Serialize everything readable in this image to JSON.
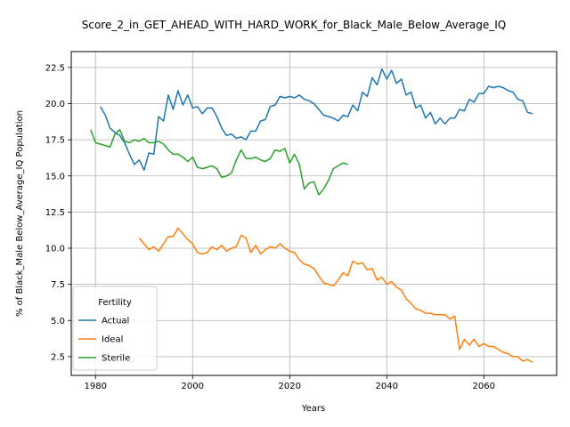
{
  "chart_data": {
    "type": "line",
    "title": "Score_2_in_GET_AHEAD_WITH_HARD_WORK_for_Black_Male_Below_Average_IQ",
    "xlabel": "Years",
    "ylabel": "% of Black_Male Below_Average_IQ Population",
    "xlim": [
      1975,
      2075
    ],
    "ylim": [
      1.2,
      23.6
    ],
    "xticks": [
      1980,
      2000,
      2020,
      2040,
      2060
    ],
    "yticks": [
      2.5,
      5.0,
      7.5,
      10.0,
      12.5,
      15.0,
      17.5,
      20.0,
      22.5
    ],
    "xtick_labels": [
      "1980",
      "2000",
      "2020",
      "2040",
      "2060"
    ],
    "ytick_labels": [
      "2.5",
      "5.0",
      "7.5",
      "10.0",
      "12.5",
      "15.0",
      "17.5",
      "20.0",
      "22.5"
    ],
    "grid": true,
    "legend": {
      "title": "Fertility",
      "placement": "lower-left"
    },
    "series": [
      {
        "name": "Actual",
        "color": "#1f77b4",
        "x": [
          1981,
          1982,
          1983,
          1984,
          1985,
          1986,
          1987,
          1988,
          1989,
          1990,
          1991,
          1992,
          1993,
          1994,
          1995,
          1996,
          1997,
          1998,
          1999,
          2000,
          2001,
          2002,
          2003,
          2004,
          2005,
          2006,
          2007,
          2008,
          2009,
          2010,
          2011,
          2012,
          2013,
          2014,
          2015,
          2016,
          2017,
          2018,
          2019,
          2020,
          2021,
          2022,
          2023,
          2024,
          2025,
          2026,
          2027,
          2028,
          2029,
          2030,
          2031,
          2032,
          2033,
          2034,
          2035,
          2036,
          2037,
          2038,
          2039,
          2040,
          2041,
          2042,
          2043,
          2044,
          2045,
          2046,
          2047,
          2048,
          2049,
          2050,
          2051,
          2052,
          2053,
          2054,
          2055,
          2056,
          2057,
          2058,
          2059,
          2060,
          2061,
          2062,
          2063,
          2064,
          2065,
          2066,
          2067,
          2068,
          2069,
          2070
        ],
        "values": [
          19.8,
          19.2,
          18.3,
          18.0,
          17.8,
          17.3,
          16.5,
          15.8,
          16.1,
          15.4,
          16.6,
          16.5,
          19.1,
          18.8,
          20.6,
          19.6,
          20.9,
          19.9,
          20.6,
          19.7,
          19.8,
          19.3,
          19.7,
          19.7,
          19.1,
          18.3,
          17.8,
          17.9,
          17.6,
          17.7,
          17.5,
          18.1,
          18.1,
          18.8,
          18.9,
          19.8,
          19.9,
          20.5,
          20.4,
          20.5,
          20.4,
          20.6,
          20.3,
          20.2,
          20.0,
          19.6,
          19.2,
          19.1,
          19.0,
          18.8,
          19.2,
          19.1,
          19.9,
          19.5,
          20.8,
          20.5,
          21.8,
          21.3,
          22.4,
          21.7,
          22.3,
          21.4,
          21.7,
          20.6,
          20.8,
          19.7,
          19.9,
          19.0,
          19.4,
          18.6,
          19.0,
          18.6,
          19.0,
          19.0,
          19.6,
          19.5,
          20.3,
          20.1,
          20.7,
          20.7,
          21.2,
          21.1,
          21.2,
          21.1,
          20.9,
          20.8,
          20.3,
          20.2,
          19.4,
          19.3
        ]
      },
      {
        "name": "Ideal",
        "color": "#ff7f0e",
        "x": [
          1989,
          1990,
          1991,
          1992,
          1993,
          1994,
          1995,
          1996,
          1997,
          1998,
          1999,
          2000,
          2001,
          2002,
          2003,
          2004,
          2005,
          2006,
          2007,
          2008,
          2009,
          2010,
          2011,
          2012,
          2013,
          2014,
          2015,
          2016,
          2017,
          2018,
          2019,
          2020,
          2021,
          2022,
          2023,
          2024,
          2025,
          2026,
          2027,
          2028,
          2029,
          2030,
          2031,
          2032,
          2033,
          2034,
          2035,
          2036,
          2037,
          2038,
          2039,
          2040,
          2041,
          2042,
          2043,
          2044,
          2045,
          2046,
          2047,
          2048,
          2049,
          2050,
          2051,
          2052,
          2053,
          2054,
          2055,
          2056,
          2057,
          2058,
          2059,
          2060,
          2061,
          2062,
          2063,
          2064,
          2065,
          2066,
          2067,
          2068,
          2069,
          2070
        ],
        "values": [
          10.7,
          10.3,
          9.9,
          10.1,
          9.8,
          10.3,
          10.8,
          10.8,
          11.4,
          11.0,
          10.6,
          10.3,
          9.7,
          9.6,
          9.7,
          10.1,
          9.9,
          10.2,
          9.8,
          10.0,
          10.1,
          10.9,
          10.7,
          9.7,
          10.2,
          9.6,
          9.9,
          10.1,
          10.0,
          10.3,
          10.0,
          9.8,
          9.7,
          9.2,
          8.9,
          8.8,
          8.6,
          8.1,
          7.6,
          7.5,
          7.4,
          7.8,
          8.3,
          8.1,
          9.1,
          8.9,
          9.0,
          8.5,
          8.6,
          7.8,
          8.0,
          7.5,
          7.7,
          7.3,
          7.1,
          6.5,
          6.2,
          5.8,
          5.7,
          5.5,
          5.5,
          5.4,
          5.4,
          5.4,
          5.1,
          5.3,
          3.0,
          3.7,
          3.3,
          3.7,
          3.2,
          3.4,
          3.2,
          3.2,
          3.0,
          2.8,
          2.7,
          2.5,
          2.5,
          2.2,
          2.3,
          2.1
        ]
      },
      {
        "name": "Sterile",
        "color": "#2ca02c",
        "x": [
          1979,
          1980,
          1981,
          1982,
          1983,
          1984,
          1985,
          1986,
          1987,
          1988,
          1989,
          1990,
          1991,
          1992,
          1993,
          1994,
          1995,
          1996,
          1997,
          1998,
          1999,
          2000,
          2001,
          2002,
          2003,
          2004,
          2005,
          2006,
          2007,
          2008,
          2009,
          2010,
          2011,
          2012,
          2013,
          2014,
          2015,
          2016,
          2017,
          2018,
          2019,
          2020,
          2021,
          2022,
          2023,
          2024,
          2025,
          2026,
          2027,
          2028,
          2029,
          2030,
          2031,
          2032
        ],
        "values": [
          18.2,
          17.3,
          17.2,
          17.1,
          17.0,
          17.9,
          18.2,
          17.4,
          17.3,
          17.5,
          17.4,
          17.6,
          17.3,
          17.3,
          17.4,
          17.2,
          16.8,
          16.5,
          16.5,
          16.3,
          16.0,
          16.3,
          15.6,
          15.5,
          15.6,
          15.7,
          15.5,
          14.9,
          15.0,
          15.2,
          16.1,
          16.8,
          16.2,
          16.2,
          16.3,
          16.1,
          16.0,
          16.2,
          16.8,
          16.7,
          16.9,
          15.9,
          16.5,
          15.8,
          14.1,
          14.5,
          14.6,
          13.7,
          14.1,
          14.7,
          15.5,
          15.7,
          15.9,
          15.8
        ]
      }
    ]
  }
}
